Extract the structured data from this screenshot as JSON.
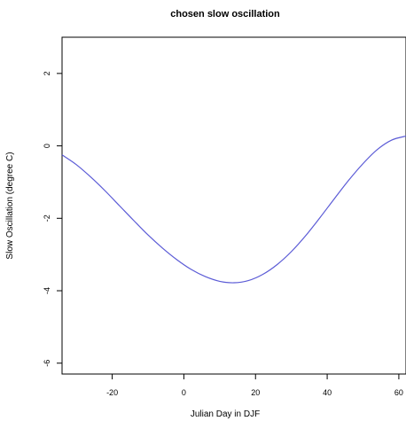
{
  "chart_data": {
    "type": "line",
    "title": "chosen slow oscillation",
    "xlabel": "Julian Day in DJF",
    "ylabel": "Slow Oscillation (degree C)",
    "xlim": [
      -34,
      62
    ],
    "ylim": [
      -6.3,
      3.0
    ],
    "x_ticks": [
      -20,
      0,
      20,
      40,
      60
    ],
    "y_ticks": [
      -6,
      -4,
      -2,
      0,
      2
    ],
    "x_tick_labels": [
      "-20",
      "0",
      "20",
      "40",
      "60"
    ],
    "y_tick_labels": [
      "-6",
      "-4",
      "-2",
      "0",
      "2"
    ],
    "grid": false,
    "legend": "none",
    "series_color": "#5b5bd6",
    "series": [
      {
        "x": [
          -34,
          -30,
          -26,
          -22,
          -18,
          -14,
          -10,
          -6,
          -2,
          2,
          6,
          10,
          14,
          18,
          22,
          26,
          30,
          34,
          38,
          42,
          46,
          50,
          54,
          58,
          62
        ],
        "y": [
          -0.25,
          -0.52,
          -0.86,
          -1.24,
          -1.65,
          -2.06,
          -2.46,
          -2.82,
          -3.14,
          -3.41,
          -3.61,
          -3.74,
          -3.78,
          -3.72,
          -3.55,
          -3.28,
          -2.92,
          -2.48,
          -1.98,
          -1.46,
          -0.95,
          -0.49,
          -0.1,
          0.16,
          0.27
        ]
      }
    ]
  }
}
